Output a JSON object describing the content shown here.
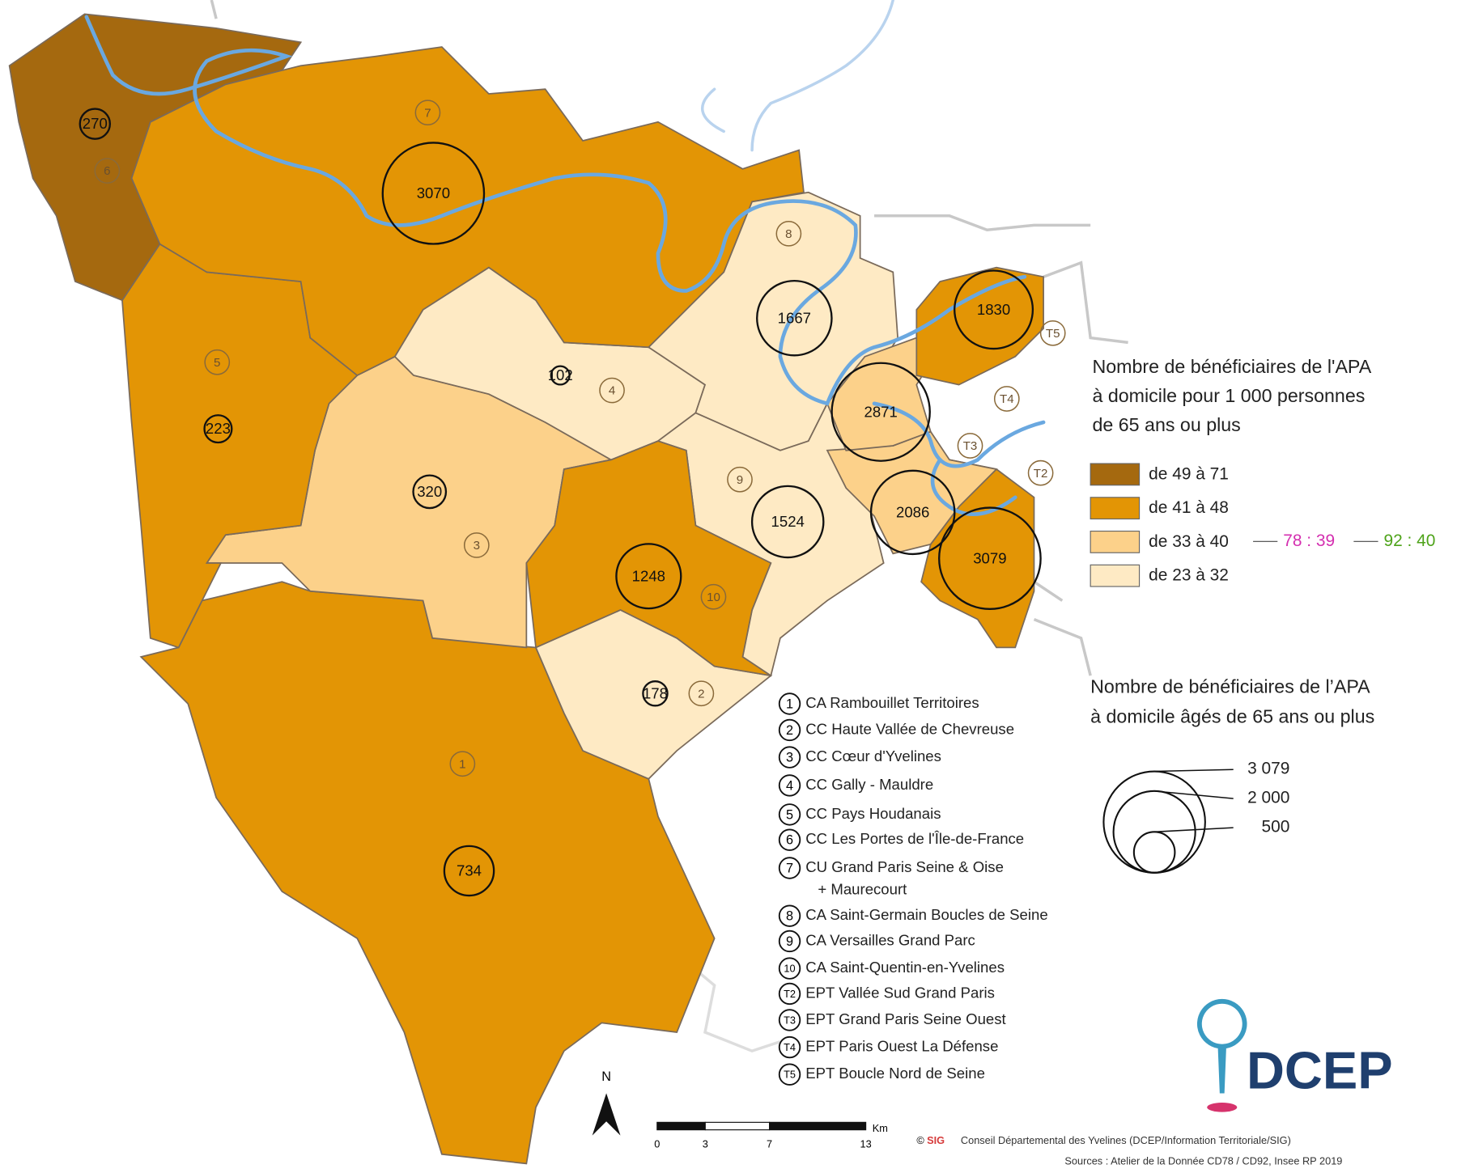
{
  "legend_choropleth": {
    "title": [
      "Nombre de bénéficiaires de l'APA",
      "à domicile pour 1 000 personnes",
      "de 65 ans ou plus"
    ],
    "classes": [
      {
        "label": "de 49 à 71",
        "color": "#a5690f"
      },
      {
        "label": "de 41 à 48",
        "color": "#e39505"
      },
      {
        "label": "de 33 à 40",
        "color": "#fcd18a"
      },
      {
        "label": "de 23 à 32",
        "color": "#feeac4"
      }
    ]
  },
  "other_departments": [
    {
      "label": "78 : 39",
      "color": "#d42fb0"
    },
    {
      "label": "92 : 40",
      "color": "#4ea31a"
    }
  ],
  "legend_circles": {
    "title": [
      "Nombre de bénéficiaires de l’APA",
      "à domicile âgés de 65 ans ou plus"
    ],
    "sizes": [
      {
        "value": 3079,
        "label": "3 079"
      },
      {
        "value": 2000,
        "label": "2 000"
      },
      500
    ]
  },
  "territories": [
    {
      "id": "1",
      "name": "CA Rambouillet Territoires",
      "beneficiaries": 734,
      "color": "#e39505"
    },
    {
      "id": "2",
      "name": "CC Haute Vallée de Chevreuse",
      "beneficiaries": 178,
      "color": "#feeac4"
    },
    {
      "id": "3",
      "name": "CC Cœur d'Yvelines",
      "beneficiaries": 320,
      "color": "#fcd18a"
    },
    {
      "id": "4",
      "name": "CC Gally - Mauldre",
      "beneficiaries": 102,
      "color": "#feeac4"
    },
    {
      "id": "5",
      "name": "CC Pays Houdanais",
      "beneficiaries": 223,
      "color": "#e39505"
    },
    {
      "id": "6",
      "name": "CC Les Portes de l'Île-de-France",
      "beneficiaries": 270,
      "color": "#a5690f"
    },
    {
      "id": "7",
      "name": "CU Grand Paris Seine & Oise",
      "name_continued": "+ Maurecourt",
      "beneficiaries": 3070,
      "color": "#e39505"
    },
    {
      "id": "8",
      "name": "CA Saint-Germain Boucles de Seine",
      "beneficiaries": 1667,
      "color": "#feeac4"
    },
    {
      "id": "9",
      "name": "CA Versailles Grand Parc",
      "beneficiaries": 1524,
      "color": "#feeac4"
    },
    {
      "id": "10",
      "name": "CA Saint-Quentin-en-Yvelines",
      "beneficiaries": 1248,
      "color": "#e39505"
    },
    {
      "id": "T2",
      "name": "EPT Vallée Sud Grand Paris",
      "beneficiaries": 3079,
      "color": "#e39505"
    },
    {
      "id": "T3",
      "name": "EPT Grand Paris Seine Ouest",
      "beneficiaries": 2086,
      "color": "#fcd18a"
    },
    {
      "id": "T4",
      "name": "EPT Paris Ouest La Défense",
      "beneficiaries": 2871,
      "color": "#fcd18a"
    },
    {
      "id": "T5",
      "name": "EPT Boucle Nord de Seine",
      "beneficiaries": 1830,
      "color": "#e39505"
    }
  ],
  "north": "N",
  "scale_bar": {
    "ticks": [
      0,
      3,
      7,
      13
    ],
    "unit": "Km"
  },
  "credits": {
    "sig": "SIG",
    "copyright": "©",
    "text": "Conseil Départemental des Yvelines (DCEP/Information Territoriale/SIG)",
    "sources": "Sources : Atelier de la Donnée CD78 / CD92, Insee RP 2019"
  },
  "logo": "DCEP"
}
